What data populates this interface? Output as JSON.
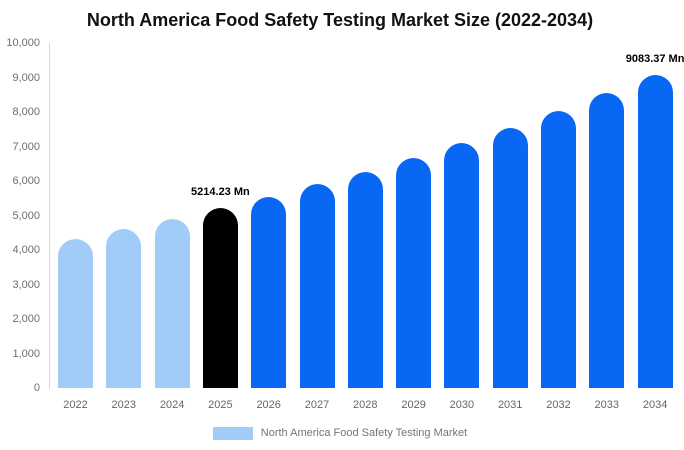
{
  "title": "North America Food Safety Testing Market Size (2022-2034)",
  "legend": {
    "label": "North America Food Safety Testing Market",
    "swatch_color": "#a2ccf8"
  },
  "chart_data": {
    "type": "bar",
    "title": "North America Food Safety Testing Market Size (2022-2034)",
    "unit": "Mn",
    "categories": [
      "2022",
      "2023",
      "2024",
      "2025",
      "2026",
      "2027",
      "2028",
      "2029",
      "2030",
      "2031",
      "2032",
      "2033",
      "2034"
    ],
    "values": [
      4330,
      4610,
      4900,
      5214.23,
      5545,
      5900,
      6275,
      6670,
      7095,
      7550,
      8030,
      8540,
      9083.37
    ],
    "point_colors": [
      "#a2ccf8",
      "#a2ccf8",
      "#a2ccf8",
      "#000000",
      "#0868f4",
      "#0868f4",
      "#0868f4",
      "#0868f4",
      "#0868f4",
      "#0868f4",
      "#0868f4",
      "#0868f4",
      "#0868f4"
    ],
    "labeled_points": {
      "2025": "5214.23 Mn",
      "2034": "9083.37 Mn"
    },
    "ylim": [
      0,
      10000
    ],
    "ytick_labels": [
      "0",
      "1,000",
      "2,000",
      "3,000",
      "4,000",
      "5,000",
      "6,000",
      "7,000",
      "8,000",
      "9,000",
      "10,000"
    ],
    "grid": false,
    "legend_entries": [
      "North America Food Safety Testing Market"
    ],
    "legend_position": "bottom"
  },
  "colors": {
    "light_blue": "#a2ccf8",
    "highlight_black": "#000000",
    "bright_blue": "#0868f4",
    "axis_line": "#d9d9d9",
    "tick_text": "#6e6e6e",
    "legend_text": "#757575",
    "title_text": "#111111",
    "background": "#ffffff"
  }
}
